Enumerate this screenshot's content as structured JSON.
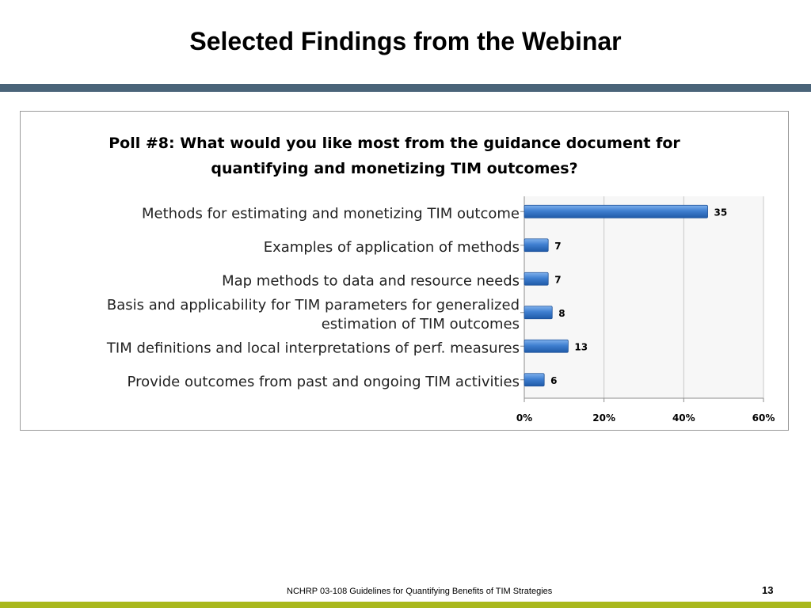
{
  "slide": {
    "title": "Selected Findings from the Webinar",
    "footer": "NCHRP 03-108 Guidelines for Quantifying Benefits of TIM Strategies",
    "page_number": "13"
  },
  "colors": {
    "title_bar": "#4a6479",
    "footer_bar": "#a9b81c",
    "bar_fill": "#3f7fd0"
  },
  "chart_data": {
    "type": "bar",
    "orientation": "horizontal",
    "title": "Poll #8: What would you like most from the guidance document for quantifying and monetizing TIM outcomes?",
    "title_lines": [
      "Poll #8: What would you like most from the guidance document for",
      "quantifying and monetizing TIM outcomes?"
    ],
    "categories": [
      "Methods for estimating and monetizing TIM outcome",
      "Examples of application of methods",
      "Map methods to data and resource needs",
      "Basis and applicability for TIM parameters for generalized estimation of TIM outcomes",
      "TIM definitions and local interpretations of perf. measures",
      "Provide outcomes from past and ongoing TIM activities"
    ],
    "category_lines": [
      [
        "Methods for estimating and monetizing TIM outcome"
      ],
      [
        "Examples of application of methods"
      ],
      [
        "Map methods to data and resource needs"
      ],
      [
        "Basis and applicability for TIM parameters for generalized",
        "estimation of TIM outcomes"
      ],
      [
        "TIM definitions and local interpretations of perf. measures"
      ],
      [
        "Provide outcomes from past and ongoing TIM activities"
      ]
    ],
    "percent_values": [
      46,
      6,
      6,
      7,
      11,
      5
    ],
    "data_labels": [
      "35",
      "7",
      "7",
      "8",
      "13",
      "6"
    ],
    "xlim": [
      0,
      60
    ],
    "x_ticks": [
      0,
      20,
      40,
      60
    ],
    "x_tick_labels": [
      "0%",
      "20%",
      "40%",
      "60%"
    ],
    "grid": true,
    "legend": "none"
  }
}
